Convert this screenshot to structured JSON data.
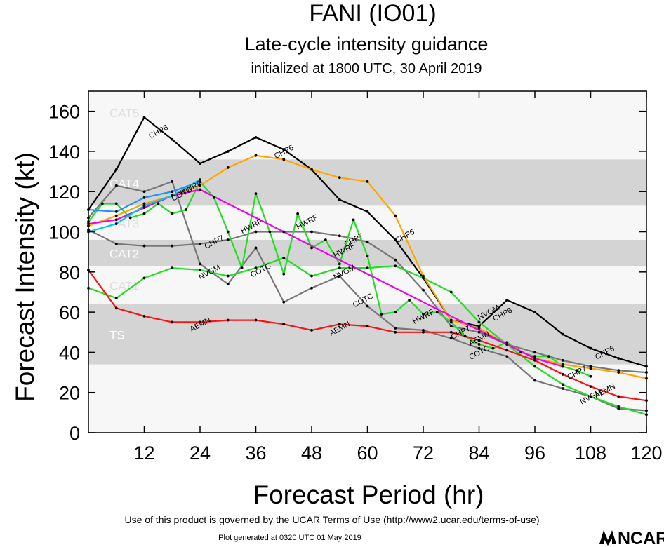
{
  "header": {
    "title": "FANI (IO01)",
    "subtitle": "Late-cycle intensity guidance",
    "initialized": "initialized at 1800 UTC, 30 April 2019"
  },
  "footer": {
    "terms": "Use of this product is governed by the UCAR Terms of Use (http://www2.ucar.edu/terms-of-use)",
    "generated": "Plot generated at 0320 UTC   01 May 2019",
    "logo_text": "NCAR"
  },
  "chart_data": {
    "type": "line",
    "title": "FANI (IO01)",
    "xlabel": "Forecast Period (hr)",
    "ylabel": "Forecast Intensity (kt)",
    "xlim": [
      0,
      120
    ],
    "ylim": [
      0,
      170
    ],
    "xticks": [
      12,
      24,
      36,
      48,
      60,
      72,
      84,
      96,
      108,
      120
    ],
    "yticks": [
      0,
      20,
      40,
      60,
      80,
      100,
      120,
      140,
      160
    ],
    "bands": [
      {
        "label": "TS",
        "range": [
          34,
          64
        ],
        "shaded": true
      },
      {
        "label": "CAT1",
        "range": [
          64,
          83
        ],
        "shaded": false
      },
      {
        "label": "CAT2",
        "range": [
          83,
          96
        ],
        "shaded": true
      },
      {
        "label": "CAT3",
        "range": [
          96,
          113
        ],
        "shaded": false
      },
      {
        "label": "CAT4",
        "range": [
          113,
          136
        ],
        "shaded": true
      },
      {
        "label": "CAT5",
        "range": [
          136,
          170
        ],
        "shaded": false
      }
    ],
    "series": [
      {
        "name": "CHP6",
        "color": "#000000",
        "x": [
          0,
          6,
          12,
          18,
          24,
          30,
          36,
          42,
          48,
          54,
          60,
          66,
          72,
          78,
          84,
          90,
          96,
          102,
          108,
          114,
          120
        ],
        "y": [
          111,
          131,
          157,
          146,
          134,
          140,
          147,
          141,
          131,
          116,
          110,
          96,
          77,
          56,
          53,
          66,
          60,
          49,
          42,
          37,
          33
        ],
        "labels": [
          [
            15,
            150
          ],
          [
            42,
            140
          ],
          [
            68,
            98
          ],
          [
            89,
            59
          ],
          [
            111,
            40
          ]
        ]
      },
      {
        "name": "CHP7",
        "color": "#777777",
        "x": [
          0,
          6,
          12,
          18,
          24,
          30,
          36,
          42,
          48,
          54,
          60,
          66,
          72,
          78,
          84,
          90,
          96,
          102,
          108,
          114,
          120
        ],
        "y": [
          101,
          94,
          93,
          93,
          94,
          96,
          100,
          100,
          100,
          98,
          95,
          86,
          71,
          53,
          50,
          44,
          40,
          36,
          33,
          31,
          30
        ],
        "labels": [
          [
            27,
            95
          ],
          [
            57,
            96
          ],
          [
            80,
            50
          ],
          [
            105,
            30
          ]
        ]
      },
      {
        "name": "COTC",
        "color": "#777777",
        "x": [
          0,
          6,
          12,
          18,
          24,
          30,
          36,
          42,
          48,
          54,
          60,
          66,
          72,
          78,
          84,
          90,
          96,
          102,
          108,
          114,
          120
        ],
        "y": [
          107,
          123,
          120,
          125,
          84,
          74,
          92,
          65,
          72,
          78,
          63,
          52,
          51,
          47,
          42,
          38,
          26,
          22,
          18,
          12,
          11
        ],
        "labels": [
          [
            20,
            119
          ],
          [
            37,
            81
          ],
          [
            59,
            66
          ],
          [
            84,
            40
          ]
        ]
      },
      {
        "name": "HWRF",
        "color": "#22dd22",
        "x": [
          0,
          3,
          6,
          9,
          12,
          15,
          18,
          21,
          24,
          27,
          30,
          33,
          36,
          39,
          42,
          45,
          48,
          51,
          54,
          57,
          60,
          63,
          66,
          69,
          72,
          75,
          78,
          81,
          84,
          87,
          90,
          93,
          96,
          99,
          102,
          105,
          108
        ],
        "y": [
          105,
          114,
          114,
          107,
          109,
          114,
          109,
          111,
          125,
          117,
          100,
          82,
          119,
          100,
          79,
          109,
          92,
          96,
          84,
          106,
          88,
          59,
          60,
          66,
          59,
          60,
          55,
          48,
          44,
          42,
          45,
          40,
          38,
          38,
          33,
          31,
          28
        ],
        "labels": [
          [
            22,
            122
          ],
          [
            35,
            103
          ],
          [
            47,
            105
          ],
          [
            55,
            91
          ],
          [
            72,
            58
          ]
        ]
      },
      {
        "name": "NVGM",
        "color": "#22dd22",
        "x": [
          0,
          6,
          12,
          18,
          24,
          30,
          36,
          42,
          48,
          54,
          60,
          66,
          72,
          78,
          84,
          90,
          96,
          102,
          108,
          114,
          120
        ],
        "y": [
          72,
          67,
          77,
          82,
          81,
          78,
          82,
          87,
          78,
          82,
          82,
          83,
          77,
          70,
          55,
          44,
          33,
          24,
          18,
          13,
          9
        ],
        "labels": [
          [
            26,
            80
          ],
          [
            55,
            80
          ],
          [
            86,
            60
          ],
          [
            108,
            18
          ]
        ]
      },
      {
        "name": "AEMN",
        "color": "#ff1111",
        "x": [
          0,
          6,
          12,
          18,
          24,
          30,
          36,
          42,
          48,
          54,
          60,
          66,
          72,
          78,
          84,
          90,
          96,
          102,
          108,
          114,
          120
        ],
        "y": [
          81,
          62,
          58,
          55,
          55,
          56,
          56,
          54,
          51,
          54,
          53,
          50,
          50,
          50,
          46,
          41,
          36,
          29,
          23,
          18,
          16
        ],
        "labels": [
          [
            24,
            54
          ],
          [
            54,
            52
          ],
          [
            84,
            47
          ],
          [
            111,
            21
          ]
        ]
      },
      {
        "name": "ORANGE",
        "color": "#ffa500",
        "x": [
          0,
          6,
          12,
          18,
          24,
          30,
          36,
          42,
          48,
          54,
          60,
          66,
          72,
          78,
          84,
          90,
          96,
          102,
          108,
          114,
          120
        ],
        "y": [
          103,
          108,
          114,
          118,
          123,
          132,
          138,
          136,
          131,
          127,
          125,
          108,
          78,
          56,
          52,
          44,
          37,
          34,
          32,
          30,
          27
        ],
        "labels": []
      },
      {
        "name": "MAGENTA",
        "color": "#ee00ee",
        "x": [
          0,
          6,
          12,
          18,
          24,
          96,
          102
        ],
        "y": [
          104,
          106,
          112,
          118,
          121,
          37,
          33
        ],
        "labels": []
      },
      {
        "name": "BLUE",
        "color": "#1e90ff",
        "x": [
          0,
          6,
          12,
          18,
          24
        ],
        "y": [
          111,
          110,
          117,
          120,
          125
        ],
        "labels": []
      },
      {
        "name": "CYAN",
        "color": "#00c8e0",
        "x": [
          0,
          6,
          12,
          18,
          24
        ],
        "y": [
          100,
          104,
          113,
          118,
          126
        ],
        "labels": []
      }
    ]
  }
}
